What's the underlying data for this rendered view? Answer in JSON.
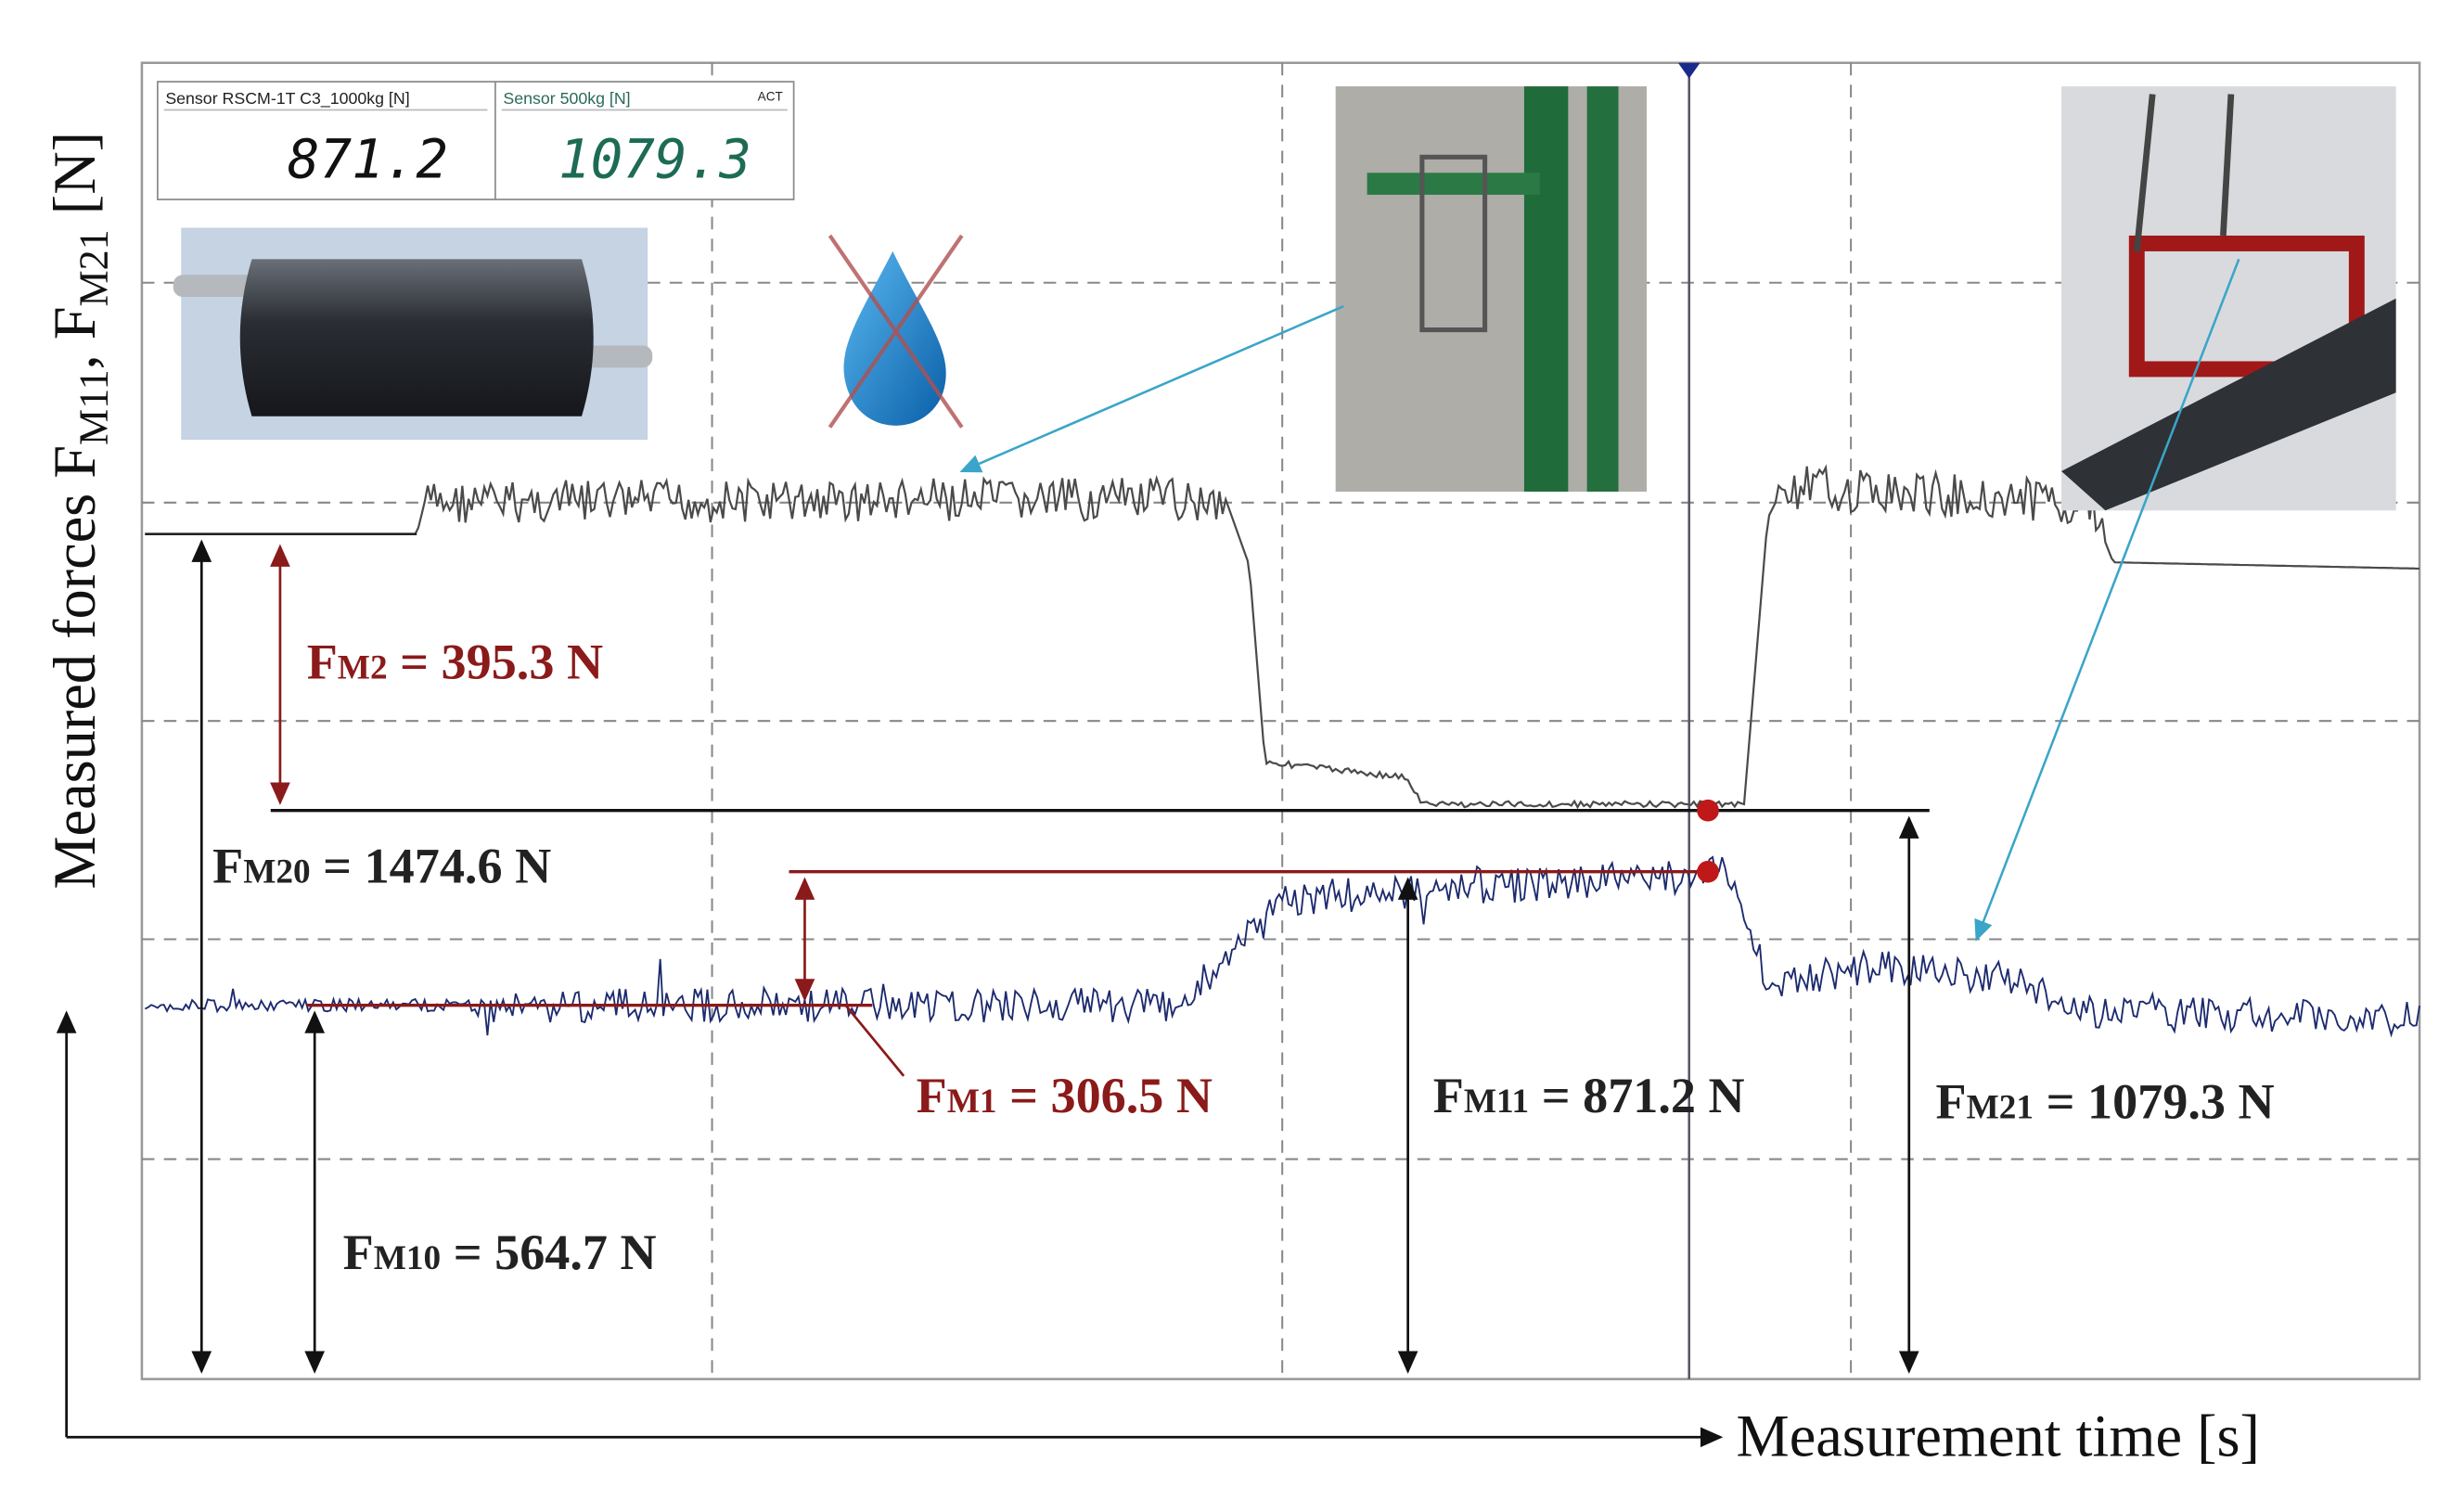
{
  "y_axis_label": {
    "parts": [
      "Measured forces F",
      "M11",
      ", F",
      "M21",
      " [N]"
    ]
  },
  "x_axis_label": "Measurement time [s]",
  "display": {
    "panels": [
      {
        "label": "Sensor RSCM-1T C3_1000kg [N]",
        "reading": "871.2"
      },
      {
        "label": "Sensor 500kg [N]",
        "reading": "1079.3",
        "status": "ACT"
      }
    ]
  },
  "annotations": [
    {
      "symbol": "F",
      "subscript": "M2",
      "text": " = 395.3 N",
      "color": "#8b1a1a"
    },
    {
      "symbol": "F",
      "subscript": "M20",
      "text": " = 1474.6 N",
      "color": "#222222"
    },
    {
      "symbol": "F",
      "subscript": "M1",
      "text": " = 306.5 N",
      "color": "#8b1a1a"
    },
    {
      "symbol": "F",
      "subscript": "M11",
      "text": " = 871.2 N",
      "color": "#222222"
    },
    {
      "symbol": "F",
      "subscript": "M21",
      "text": " = 1079.3 N",
      "color": "#222222"
    },
    {
      "symbol": "F",
      "subscript": "M10",
      "text": " = 564.7 N",
      "color": "#222222"
    }
  ]
}
